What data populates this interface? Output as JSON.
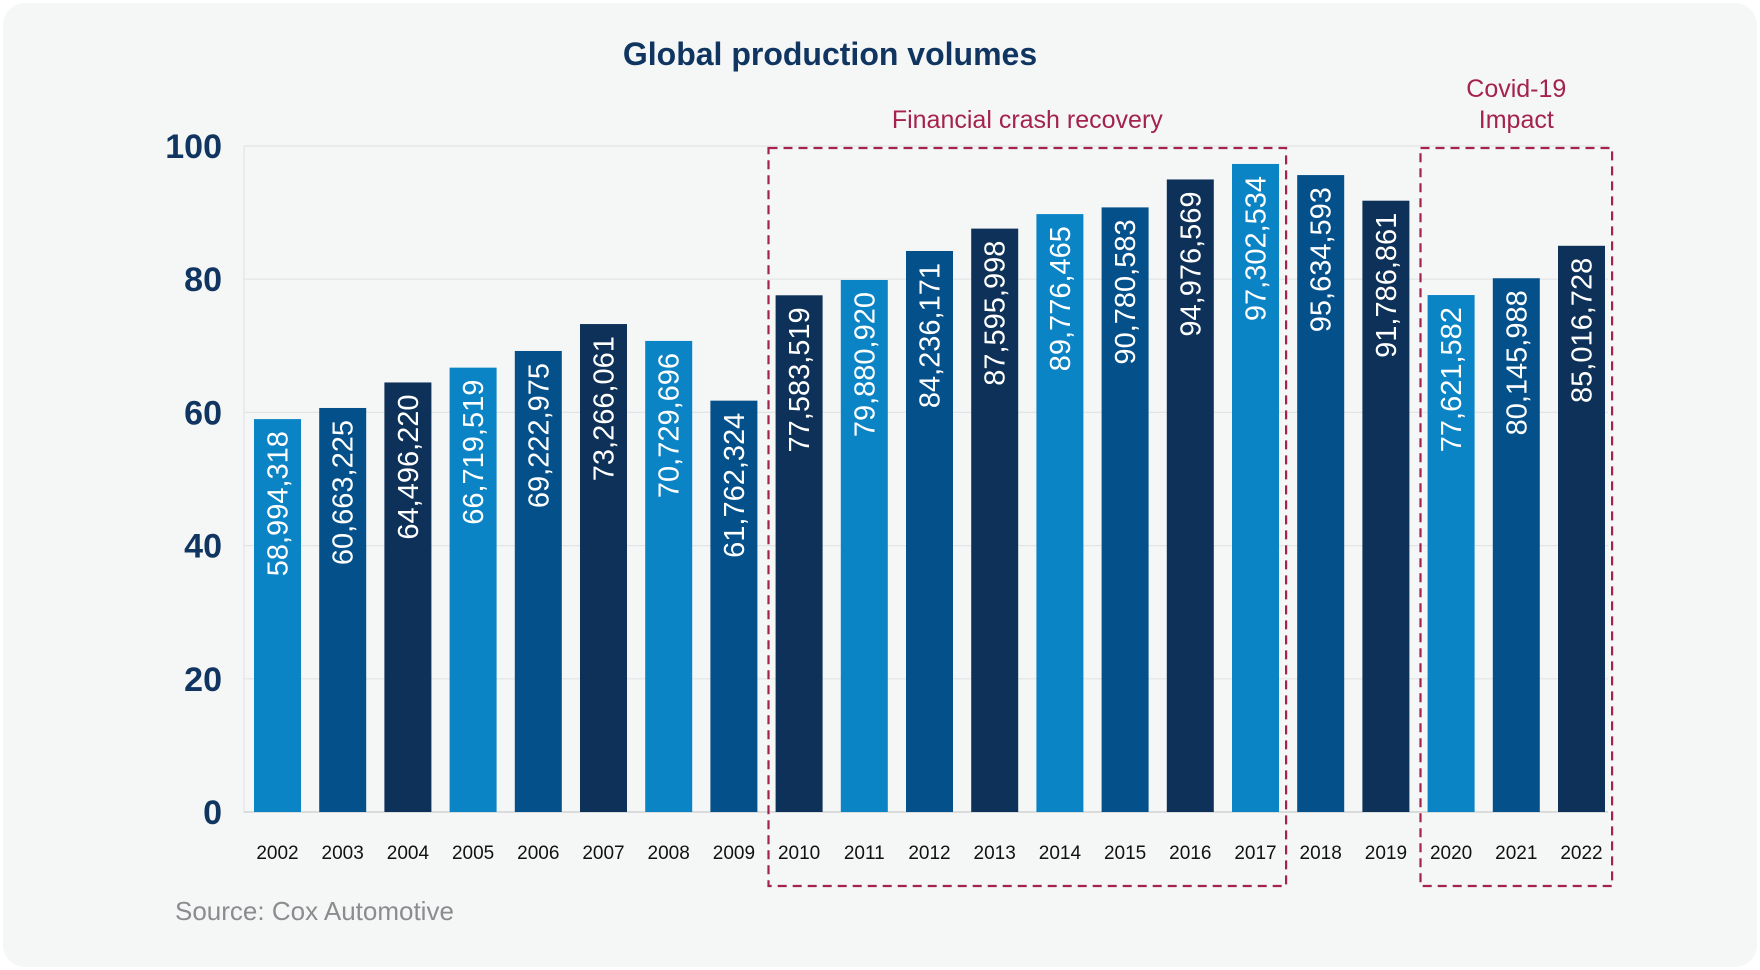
{
  "card": {
    "source": "Source: Cox Automotive"
  },
  "chart_data": {
    "type": "bar",
    "title": "Global production volumes",
    "xlabel": "",
    "ylabel": "",
    "ylim": [
      0,
      100
    ],
    "yticks": [
      "0",
      "20",
      "40",
      "60",
      "80",
      "100"
    ],
    "grid": true,
    "categories": [
      "2002",
      "2003",
      "2004",
      "2005",
      "2006",
      "2007",
      "2008",
      "2009",
      "2010",
      "2011",
      "2012",
      "2013",
      "2014",
      "2015",
      "2016",
      "2017",
      "2018",
      "2019",
      "2020",
      "2021",
      "2022"
    ],
    "values": [
      58994318,
      60663225,
      64496220,
      66719519,
      69222975,
      73266061,
      70729696,
      61762324,
      77583519,
      79880920,
      84236171,
      87595998,
      89776465,
      90780583,
      94976569,
      97302534,
      95634593,
      91786861,
      77621582,
      80145988,
      85016728
    ],
    "data_labels": [
      "58,994,318",
      "60,663,225",
      "64,496,220",
      "66,719,519",
      "69,222,975",
      "73,266,061",
      "70,729,696",
      "61,762,324",
      "77,583,519",
      "79,880,920",
      "84,236,171",
      "87,595,998",
      "89,776,465",
      "90,780,583",
      "94,976,569",
      "97,302,534",
      "95,634,593",
      "91,786,861",
      "77,621,582",
      "80,145,988",
      "85,016,728"
    ],
    "bar_colors": [
      "#0b84c6",
      "#03508a",
      "#0d3158",
      "#0b84c6",
      "#03508a",
      "#0d3158",
      "#0b84c6",
      "#03508a",
      "#0d3158",
      "#0b84c6",
      "#03508a",
      "#0d3158",
      "#0b84c6",
      "#03508a",
      "#0d3158",
      "#0b84c6",
      "#03508a",
      "#0d3158",
      "#0b84c6",
      "#03508a",
      "#0d3158"
    ],
    "annotations": [
      {
        "label": "Financial crash recovery",
        "from": "2010",
        "to": "2017",
        "color": "#a3234c"
      },
      {
        "label": "Covid-19 Impact",
        "lines": [
          "Covid-19",
          "Impact"
        ],
        "from": "2020",
        "to": "2022",
        "color": "#a3234c"
      }
    ]
  }
}
